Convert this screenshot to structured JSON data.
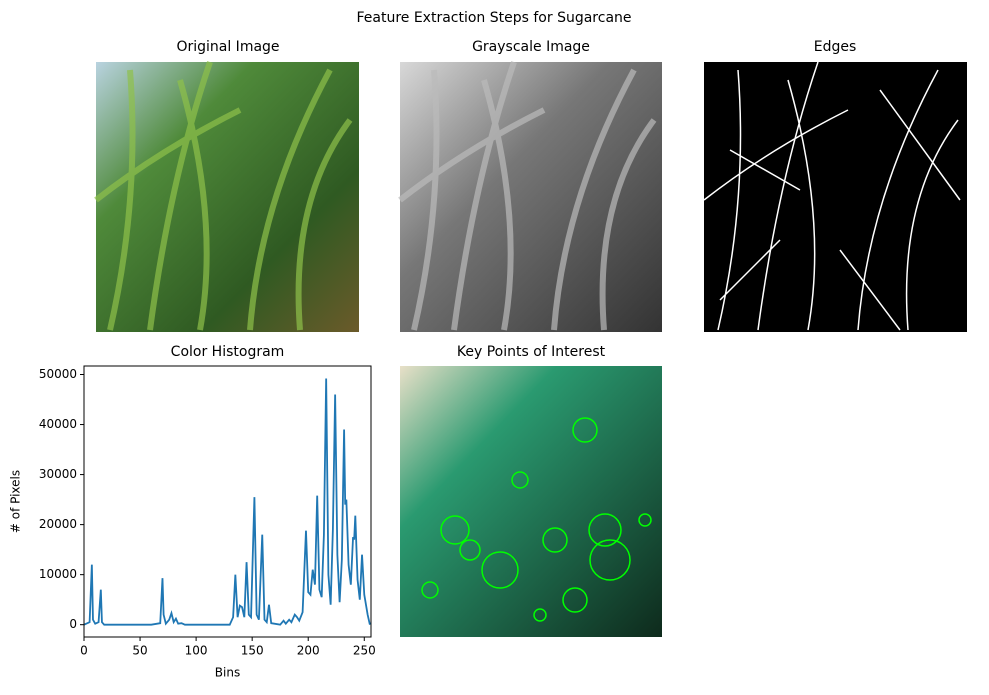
{
  "title": "Feature Extraction Steps for Sugarcane",
  "images": [
    {
      "title": "Original Image"
    },
    {
      "title": "Grayscale Image"
    },
    {
      "title": "Edges"
    },
    {
      "title": "Key Points of Interest"
    }
  ],
  "chart_data": {
    "type": "line",
    "title": "Color Histogram",
    "xlabel": "Bins",
    "ylabel": "# of Pixels",
    "color": "#1f77b4",
    "x": [
      0,
      5,
      7,
      8,
      10,
      13,
      15,
      16,
      18,
      30,
      60,
      68,
      70,
      71,
      73,
      76,
      78,
      80,
      82,
      84,
      87,
      90,
      130,
      133,
      135,
      137,
      139,
      141,
      143,
      145,
      147,
      149,
      152,
      154,
      156,
      159,
      161,
      163,
      165,
      167,
      175,
      178,
      180,
      183,
      185,
      188,
      190,
      192,
      195,
      198,
      200,
      202,
      204,
      206,
      208,
      210,
      212,
      214,
      216,
      218,
      220,
      222,
      224,
      226,
      228,
      230,
      232,
      233,
      234,
      236,
      238,
      240,
      241,
      242,
      244,
      246,
      248,
      250,
      253,
      255
    ],
    "values": [
      0,
      500,
      12000,
      1000,
      200,
      500,
      7000,
      500,
      0,
      0,
      0,
      300,
      9300,
      2000,
      200,
      1000,
      2300,
      500,
      1200,
      200,
      300,
      0,
      0,
      1500,
      10000,
      1500,
      3800,
      3500,
      1500,
      12500,
      2000,
      1500,
      25500,
      2000,
      1000,
      18000,
      1000,
      500,
      4000,
      300,
      0,
      800,
      200,
      1000,
      500,
      2000,
      1500,
      800,
      2500,
      18800,
      6500,
      6000,
      11000,
      8000,
      25800,
      7000,
      5500,
      18000,
      49200,
      10000,
      4000,
      19000,
      46000,
      14000,
      4500,
      13000,
      39000,
      24000,
      25000,
      12000,
      8000,
      17500,
      17000,
      21800,
      9000,
      5000,
      14000,
      6000,
      2000,
      0
    ],
    "xlim": [
      0,
      256
    ],
    "ylim": [
      -2460,
      51700
    ],
    "xticks": [
      0,
      50,
      100,
      150,
      200,
      250
    ],
    "yticks": [
      0,
      10000,
      20000,
      30000,
      40000,
      50000
    ]
  }
}
